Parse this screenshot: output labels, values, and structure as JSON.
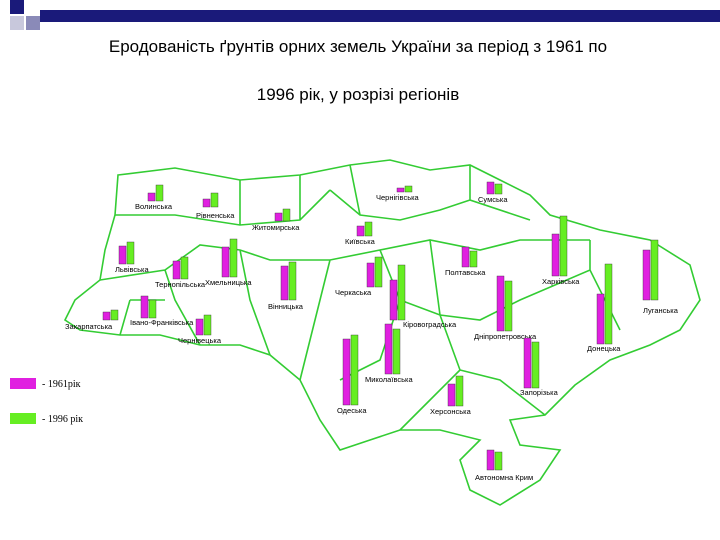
{
  "title_line1": "Еродованість ґрунтів орних земель України за період з 1961 по",
  "title_line2": "1996 рік, у розрізі регіонів",
  "chart_data": {
    "type": "map-bars",
    "series": [
      {
        "name": "- 1961рік",
        "color": "#e020e0"
      },
      {
        "name": "- 1996 рік",
        "color": "#66ee22"
      }
    ],
    "regions": [
      {
        "name": "Волинська",
        "values": [
          8,
          16
        ]
      },
      {
        "name": "Рівненська",
        "values": [
          8,
          14
        ]
      },
      {
        "name": "Житомирська",
        "values": [
          8,
          12
        ]
      },
      {
        "name": "Чернігівська",
        "values": [
          4,
          6
        ]
      },
      {
        "name": "Сумська",
        "values": [
          12,
          10
        ]
      },
      {
        "name": "Київська",
        "values": [
          10,
          14
        ]
      },
      {
        "name": "Львівська",
        "values": [
          18,
          22
        ]
      },
      {
        "name": "Тернопільська",
        "values": [
          18,
          22
        ]
      },
      {
        "name": "Хмельницька",
        "values": [
          30,
          38
        ]
      },
      {
        "name": "Вінницька",
        "values": [
          34,
          38
        ]
      },
      {
        "name": "Черкаська",
        "values": [
          24,
          30
        ]
      },
      {
        "name": "Полтавська",
        "values": [
          20,
          16
        ]
      },
      {
        "name": "Харківська",
        "values": [
          42,
          60
        ]
      },
      {
        "name": "Луганська",
        "values": [
          50,
          60
        ]
      },
      {
        "name": "Івано-Франківська",
        "values": [
          22,
          18
        ]
      },
      {
        "name": "Закарпатська",
        "values": [
          8,
          10
        ]
      },
      {
        "name": "Чернівецька",
        "values": [
          16,
          20
        ]
      },
      {
        "name": "Кіровоградська",
        "values": [
          40,
          55
        ]
      },
      {
        "name": "Дніпропетровська",
        "values": [
          55,
          50
        ]
      },
      {
        "name": "Донецька",
        "values": [
          50,
          80
        ]
      },
      {
        "name": "Миколаївська",
        "values": [
          50,
          45
        ]
      },
      {
        "name": "Одеська",
        "values": [
          66,
          70
        ]
      },
      {
        "name": "Херсонська",
        "values": [
          22,
          30
        ]
      },
      {
        "name": "Запорізька",
        "values": [
          50,
          46
        ]
      },
      {
        "name": "Автономна Крим",
        "values": [
          20,
          18
        ]
      }
    ]
  }
}
